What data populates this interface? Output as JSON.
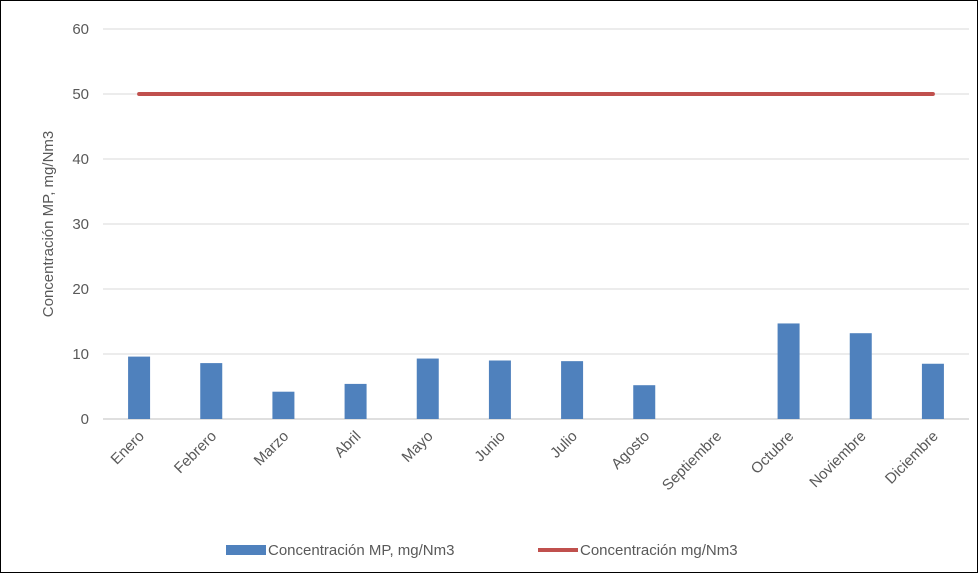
{
  "chart_data": {
    "type": "bar",
    "title": "",
    "xlabel": "",
    "ylabel": "Concentración MP, mg/Nm3",
    "ylim": [
      0,
      60
    ],
    "yticks": [
      "0",
      "10",
      "20",
      "30",
      "40",
      "50",
      "60"
    ],
    "grid": true,
    "legend_position": "bottom",
    "categories": [
      "Enero",
      "Febrero",
      "Marzo",
      "Abril",
      "Mayo",
      "Junio",
      "Julio",
      "Agosto",
      "Septiembre",
      "Octubre",
      "Noviembre",
      "Diciembre"
    ],
    "series": [
      {
        "name": "Concentración MP, mg/Nm3",
        "type": "bar",
        "color": "#4f81bd",
        "values": [
          9.6,
          8.6,
          4.2,
          5.4,
          9.3,
          9.0,
          8.9,
          5.2,
          0,
          14.7,
          13.2,
          8.5
        ]
      },
      {
        "name": "Concentración mg/Nm3",
        "type": "line",
        "color": "#c0504d",
        "values": [
          50,
          50,
          50,
          50,
          50,
          50,
          50,
          50,
          50,
          50,
          50,
          50
        ]
      }
    ]
  }
}
